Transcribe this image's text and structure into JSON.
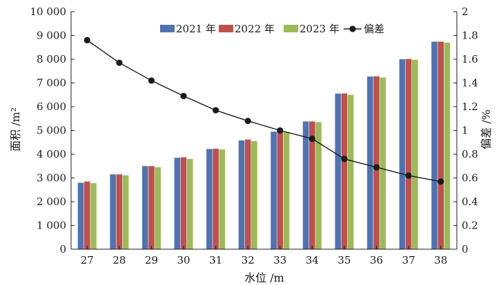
{
  "chart_data": {
    "type": "bar",
    "categories": [
      "27",
      "28",
      "29",
      "30",
      "31",
      "32",
      "33",
      "34",
      "35",
      "36",
      "37",
      "38"
    ],
    "series": [
      {
        "name": "2021 年",
        "color": "#4f74b3",
        "values": [
          2800,
          3150,
          3500,
          3850,
          4220,
          4580,
          4950,
          5380,
          6550,
          7270,
          8000,
          8740
        ]
      },
      {
        "name": "2022 年",
        "color": "#c0504d",
        "values": [
          2850,
          3150,
          3500,
          3870,
          4230,
          4620,
          4980,
          5380,
          6560,
          7280,
          8010,
          8740
        ]
      },
      {
        "name": "2023 年",
        "color": "#9bbb59",
        "values": [
          2780,
          3110,
          3450,
          3800,
          4200,
          4550,
          4940,
          5350,
          6500,
          7230,
          7980,
          8700
        ]
      }
    ],
    "line_series": {
      "name": "偏差",
      "color": "#1a1a1a",
      "axis": "right",
      "values": [
        1.76,
        1.57,
        1.42,
        1.29,
        1.17,
        1.08,
        1.0,
        0.93,
        0.76,
        0.69,
        0.62,
        0.57
      ]
    },
    "xlabel": "水位 /m",
    "ylabel": "面积 /m²",
    "y2label": "偏差 /%",
    "ylim": [
      0,
      10000
    ],
    "yticks": [
      0,
      1000,
      2000,
      3000,
      4000,
      5000,
      6000,
      7000,
      8000,
      9000,
      10000
    ],
    "ytick_labels": [
      "0",
      "1 000",
      "2 000",
      "3 000",
      "4 000",
      "5 000",
      "6 000",
      "7 000",
      "8 000",
      "9 000",
      "10 000"
    ],
    "y2lim": [
      0,
      2
    ],
    "y2ticks": [
      0,
      0.2,
      0.4,
      0.6,
      0.8,
      1,
      1.2,
      1.4,
      1.6,
      1.8,
      2
    ],
    "y2tick_labels": [
      "0",
      "0.2",
      "0.4",
      "0.6",
      "0.8",
      "1",
      "1.2",
      "1.4",
      "1.6",
      "1.8",
      "2"
    ],
    "grid": false,
    "legend_position": "top-center"
  }
}
